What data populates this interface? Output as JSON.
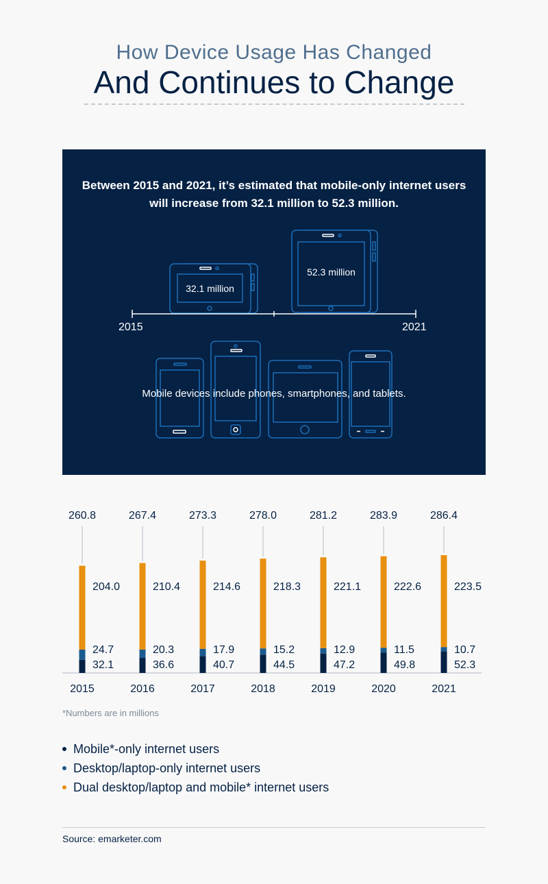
{
  "header": {
    "subtitle": "How Device Usage Has Changed",
    "title": "And Continues to Change"
  },
  "panel": {
    "headline": "Between 2015 and 2021, it’s estimated that mobile-only internet users will increase from 32.1 million to 52.3 million.",
    "device_2015_label": "32.1 million",
    "device_2021_label": "52.3 million",
    "year_start": "2015",
    "year_end": "2021",
    "note": "Mobile devices include phones, smartphones, and tablets.",
    "colors": {
      "background": "#052144",
      "outline": "#1d6fb8"
    }
  },
  "chart_data": {
    "type": "bar",
    "stacked": true,
    "categories": [
      "2015",
      "2016",
      "2017",
      "2018",
      "2019",
      "2020",
      "2021"
    ],
    "totals": [
      "260.8",
      "267.4",
      "273.3",
      "278.0",
      "281.2",
      "283.9",
      "286.4"
    ],
    "series": [
      {
        "name": "Mobile*-only internet users",
        "color": "#052144",
        "values": [
          32.1,
          36.6,
          40.7,
          44.5,
          47.2,
          49.8,
          52.3
        ],
        "labels": [
          "32.1",
          "36.6",
          "40.7",
          "44.5",
          "47.2",
          "49.8",
          "52.3"
        ]
      },
      {
        "name": "Desktop/laptop-only internet users",
        "color": "#1b5a8e",
        "values": [
          24.7,
          20.3,
          17.9,
          15.2,
          12.9,
          11.5,
          10.7
        ],
        "labels": [
          "24.7",
          "20.3",
          "17.9",
          "15.2",
          "12.9",
          "11.5",
          "10.7"
        ]
      },
      {
        "name": "Dual desktop/laptop and mobile* internet users",
        "color": "#e8900f",
        "values": [
          204.0,
          210.4,
          214.6,
          218.3,
          221.1,
          222.6,
          223.5
        ],
        "labels": [
          "204.0",
          "210.4",
          "214.6",
          "218.3",
          "221.1",
          "222.6",
          "223.5"
        ]
      }
    ]
  },
  "footnote": "*Numbers are in millions",
  "legend": [
    {
      "label": "Mobile*-only internet users",
      "color": "#052144"
    },
    {
      "label": "Desktop/laptop-only internet users",
      "color": "#1b5a8e"
    },
    {
      "label": "Dual desktop/laptop and mobile* internet users",
      "color": "#e8900f"
    }
  ],
  "source": "Source: emarketer.com"
}
